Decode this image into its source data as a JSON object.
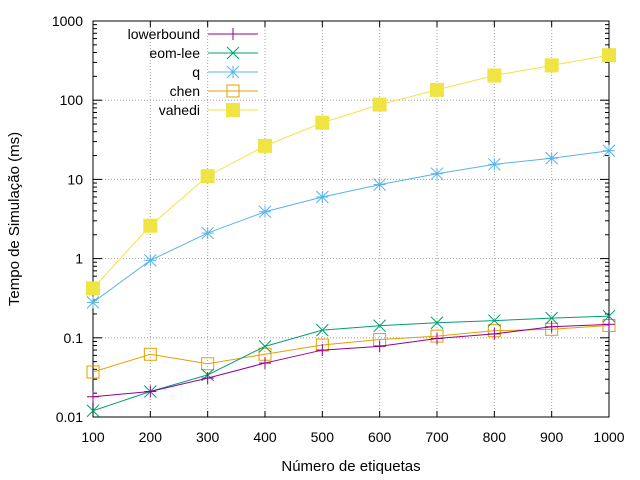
{
  "chart_data": {
    "type": "line",
    "xlabel": "Número de etiquetas",
    "ylabel": "Tempo de Simulação (ms)",
    "x": [
      100,
      200,
      300,
      400,
      500,
      600,
      700,
      800,
      900,
      1000
    ],
    "x_ticks": [
      "100",
      "200",
      "300",
      "400",
      "500",
      "600",
      "700",
      "800",
      "900",
      "1000"
    ],
    "y_ticks": [
      {
        "value": 0.01,
        "label": "0.01"
      },
      {
        "value": 0.1,
        "label": "0.1"
      },
      {
        "value": 1,
        "label": "1"
      },
      {
        "value": 10,
        "label": "10"
      },
      {
        "value": 100,
        "label": "100"
      },
      {
        "value": 1000,
        "label": "1000"
      }
    ],
    "xlim": [
      100,
      1000
    ],
    "ylim": [
      0.01,
      1000
    ],
    "yscale": "log",
    "grid": true,
    "legend_position": "top-left",
    "series": [
      {
        "name": "lowerbound",
        "color": "#94008f",
        "marker": "plus",
        "values": [
          0.018,
          0.021,
          0.031,
          0.048,
          0.07,
          0.078,
          0.098,
          0.112,
          0.138,
          0.148
        ]
      },
      {
        "name": "eom-lee",
        "color": "#009e73",
        "marker": "x",
        "values": [
          0.012,
          0.021,
          0.034,
          0.078,
          0.125,
          0.142,
          0.155,
          0.165,
          0.177,
          0.188
        ]
      },
      {
        "name": "q",
        "color": "#56b4e9",
        "marker": "star",
        "values": [
          0.28,
          0.95,
          2.1,
          3.9,
          6.0,
          8.6,
          11.8,
          15.5,
          18.5,
          23.0
        ]
      },
      {
        "name": "chen",
        "color": "#e69f00",
        "marker": "square-open",
        "values": [
          0.037,
          0.062,
          0.047,
          0.062,
          0.081,
          0.095,
          0.105,
          0.123,
          0.128,
          0.143
        ]
      },
      {
        "name": "vahedi",
        "color": "#f0e442",
        "marker": "square-filled",
        "values": [
          0.42,
          2.6,
          11.0,
          26.5,
          52.0,
          88.0,
          135.0,
          205.0,
          275.0,
          370.0
        ]
      }
    ]
  }
}
